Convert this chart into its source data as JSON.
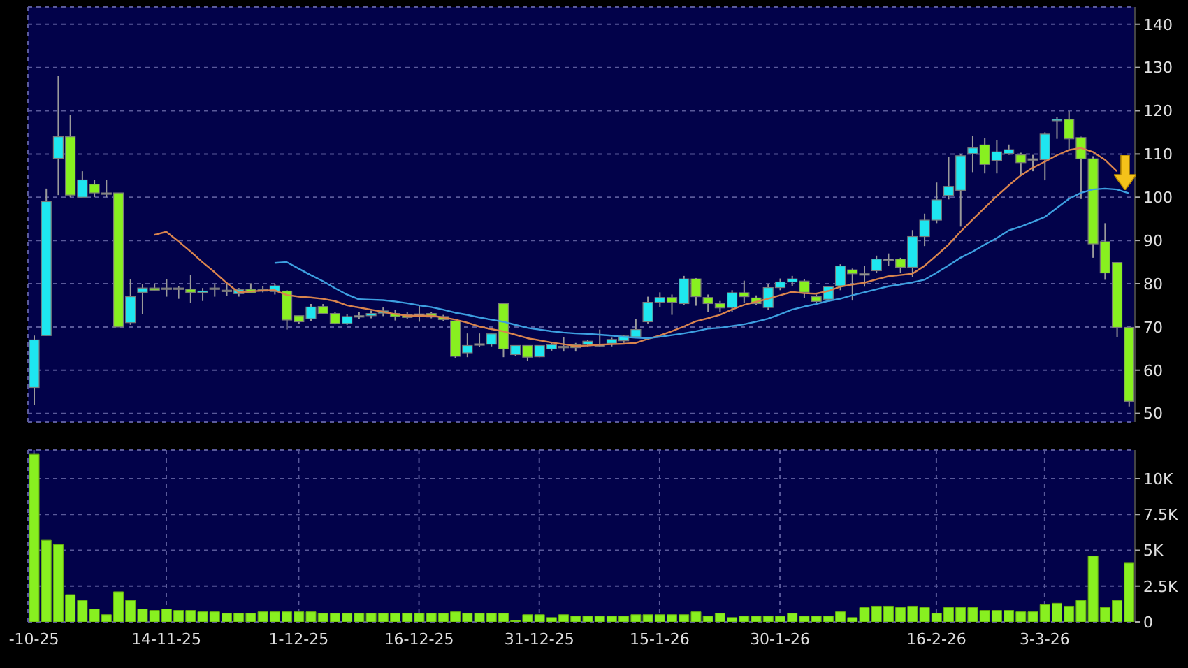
{
  "chart_data": [
    {
      "type": "candlestick",
      "categories": [
        null,
        null,
        null,
        null,
        null,
        null,
        null,
        null,
        null,
        null,
        null,
        null,
        null,
        null,
        null,
        null,
        null,
        null,
        null,
        null,
        null,
        null,
        null,
        null,
        null,
        null,
        null,
        null,
        null,
        null,
        null,
        null,
        null,
        null,
        null,
        null,
        null,
        null,
        null,
        null,
        null,
        null,
        null,
        null,
        null,
        null,
        null,
        null,
        null,
        null,
        null,
        null,
        null,
        null,
        null,
        null,
        null,
        null,
        null,
        null,
        null,
        null,
        null,
        null,
        null,
        null,
        null,
        null,
        null,
        null,
        null,
        null,
        null,
        null,
        null,
        null,
        null,
        null,
        null,
        null,
        null,
        null,
        null,
        null,
        null,
        null,
        null,
        null,
        null,
        null,
        null,
        null
      ],
      "ohlc": [
        [
          56,
          68,
          52,
          67
        ],
        [
          68,
          102,
          68,
          99
        ],
        [
          109,
          128,
          100.5,
          114
        ],
        [
          114,
          119,
          100,
          100.5
        ],
        [
          100,
          106,
          100,
          104
        ],
        [
          103,
          104,
          100,
          101
        ],
        [
          101,
          104,
          100,
          101
        ],
        [
          101,
          101,
          70,
          70
        ],
        [
          71,
          81,
          70.5,
          77
        ],
        [
          78,
          80,
          73,
          79
        ],
        [
          79,
          80,
          78.5,
          78.5
        ],
        [
          79,
          81,
          77,
          79
        ],
        [
          79,
          79.5,
          76.5,
          79
        ],
        [
          78.7,
          82,
          75.6,
          78
        ],
        [
          78,
          79,
          76,
          78.3
        ],
        [
          79,
          80,
          77,
          79
        ],
        [
          78.5,
          80,
          77.2,
          78.5
        ],
        [
          77.7,
          79,
          77,
          78.6
        ],
        [
          78.7,
          80.1,
          77.9,
          77.9
        ],
        [
          78.6,
          79.5,
          78,
          78.3
        ],
        [
          78.2,
          80,
          77.5,
          79.5
        ],
        [
          78.3,
          78.5,
          69.4,
          71.6
        ],
        [
          72.6,
          72.6,
          70.7,
          71.2
        ],
        [
          71.9,
          75.3,
          71.3,
          74.6
        ],
        [
          74.7,
          75.3,
          73,
          73.1
        ],
        [
          73.1,
          73.5,
          70.6,
          70.8
        ],
        [
          70.8,
          73,
          70.5,
          72.4
        ],
        [
          72.6,
          73.4,
          71.9,
          72.6
        ],
        [
          72.6,
          73.8,
          72,
          73.1
        ],
        [
          73.2,
          74.5,
          72.5,
          73.7
        ],
        [
          73.1,
          74,
          71.5,
          72.4
        ],
        [
          72.8,
          73.5,
          71.8,
          72.2
        ],
        [
          73,
          74.9,
          71.2,
          73
        ],
        [
          73.1,
          73.5,
          72,
          72.3
        ],
        [
          72.4,
          72.8,
          71.3,
          71.7
        ],
        [
          71.4,
          71.4,
          62.8,
          63.2
        ],
        [
          64,
          68.5,
          63,
          65.7
        ],
        [
          66.1,
          68.5,
          65.3,
          66.1
        ],
        [
          66,
          68.4,
          65.5,
          68.4
        ],
        [
          75.4,
          75.4,
          63,
          64.9
        ],
        [
          63.6,
          65.7,
          63.2,
          65.7
        ],
        [
          65.7,
          65.7,
          62.1,
          63
        ],
        [
          63.1,
          65.7,
          63,
          65.7
        ],
        [
          64.9,
          66.6,
          64.5,
          65.9
        ],
        [
          65.5,
          67.7,
          64.3,
          65.5
        ],
        [
          65.9,
          66.3,
          64.3,
          65.2
        ],
        [
          66,
          67,
          65.5,
          66.7
        ],
        [
          65.9,
          69.4,
          65.3,
          65.9
        ],
        [
          66.2,
          67.5,
          65.5,
          67.1
        ],
        [
          66.8,
          68.2,
          66.3,
          67.9
        ],
        [
          67.7,
          71.9,
          67.5,
          69.4
        ],
        [
          71.2,
          77,
          70.8,
          75.7
        ],
        [
          75.7,
          78,
          74.5,
          76.8
        ],
        [
          76.8,
          77.5,
          72.8,
          75.7
        ],
        [
          75.4,
          81.8,
          75,
          81.1
        ],
        [
          81.1,
          81.3,
          74.9,
          77
        ],
        [
          76.8,
          77.5,
          73.5,
          75.4
        ],
        [
          75.4,
          76,
          73.5,
          74.4
        ],
        [
          74.5,
          78.5,
          73.5,
          77.9
        ],
        [
          77.9,
          80.7,
          75.5,
          77
        ],
        [
          76.7,
          77.3,
          75,
          75.4
        ],
        [
          74.5,
          80,
          74,
          79.1
        ],
        [
          79.1,
          81.2,
          78.5,
          80.4
        ],
        [
          80.4,
          81.8,
          79.5,
          81.1
        ],
        [
          80.6,
          81,
          76.7,
          78
        ],
        [
          77,
          77.5,
          75.3,
          75.9
        ],
        [
          76.4,
          79.5,
          76,
          79.3
        ],
        [
          79.5,
          84.5,
          78.5,
          84.1
        ],
        [
          83.2,
          83.5,
          76.1,
          82.3
        ],
        [
          82.3,
          84.1,
          79.3,
          82.3
        ],
        [
          83,
          86.5,
          82.5,
          85.7
        ],
        [
          85.7,
          87,
          84.1,
          85.7
        ],
        [
          85.7,
          86,
          82.5,
          83.8
        ],
        [
          83.8,
          92.4,
          81.5,
          90.9
        ],
        [
          90.9,
          96.2,
          88.7,
          94.7
        ],
        [
          94.7,
          103.4,
          94,
          99.4
        ],
        [
          100.4,
          109.3,
          99.5,
          102.5
        ],
        [
          101.6,
          110,
          93.2,
          109.6
        ],
        [
          110.1,
          114.1,
          105.8,
          111.4
        ],
        [
          112.1,
          113.7,
          105.5,
          107.6
        ],
        [
          108.5,
          113.2,
          105.5,
          110.5
        ],
        [
          110.1,
          112.2,
          109.8,
          111
        ],
        [
          109.8,
          110.3,
          105,
          108
        ],
        [
          108.9,
          109.8,
          106,
          108.9
        ],
        [
          108.7,
          115,
          103.9,
          114.6
        ],
        [
          117.8,
          118.5,
          113.5,
          118
        ],
        [
          118,
          119.9,
          111,
          113.5
        ],
        [
          113.8,
          114,
          99.6,
          108.9
        ],
        [
          108.9,
          109.5,
          86,
          89.2
        ],
        [
          89.7,
          94,
          80.9,
          82.5
        ],
        [
          84.9,
          85,
          67.6,
          69.9
        ],
        [
          69.9,
          70,
          51.6,
          52.8
        ]
      ],
      "colors": [
        "#1ee6f0",
        "#1ee6f0",
        "#1ee6f0",
        "#88f020",
        "#1ee6f0",
        "#88f020",
        "#a0a0a0",
        "#88f020",
        "#1ee6f0",
        "#1ee6f0",
        "#88f020",
        "#a0a0a0",
        "#a0a0a0",
        "#88f020",
        "#1ee6f0",
        "#a0a0a0",
        "#a0a0a0",
        "#1ee6f0",
        "#88f020",
        "#88f020",
        "#1ee6f0",
        "#88f020",
        "#88f020",
        "#1ee6f0",
        "#88f020",
        "#88f020",
        "#1ee6f0",
        "#a0a0a0",
        "#1ee6f0",
        "#1ee6f0",
        "#88f020",
        "#88f020",
        "#a0a0a0",
        "#88f020",
        "#88f020",
        "#88f020",
        "#1ee6f0",
        "#a0a0a0",
        "#1ee6f0",
        "#88f020",
        "#1ee6f0",
        "#88f020",
        "#1ee6f0",
        "#1ee6f0",
        "#a0a0a0",
        "#88f020",
        "#1ee6f0",
        "#a0a0a0",
        "#1ee6f0",
        "#1ee6f0",
        "#1ee6f0",
        "#1ee6f0",
        "#1ee6f0",
        "#88f020",
        "#1ee6f0",
        "#88f020",
        "#88f020",
        "#88f020",
        "#1ee6f0",
        "#88f020",
        "#88f020",
        "#1ee6f0",
        "#1ee6f0",
        "#1ee6f0",
        "#88f020",
        "#88f020",
        "#1ee6f0",
        "#1ee6f0",
        "#88f020",
        "#a0a0a0",
        "#1ee6f0",
        "#a0a0a0",
        "#88f020",
        "#1ee6f0",
        "#1ee6f0",
        "#1ee6f0",
        "#1ee6f0",
        "#1ee6f0",
        "#1ee6f0",
        "#88f020",
        "#1ee6f0",
        "#1ee6f0",
        "#88f020",
        "#a0a0a0",
        "#1ee6f0",
        "#1ee6f0",
        "#88f020",
        "#88f020",
        "#88f020",
        "#88f020",
        "#88f020",
        "#88f020"
      ],
      "series": [
        {
          "type": "line",
          "color": "#d9844e",
          "values": [
            null,
            null,
            null,
            null,
            null,
            null,
            null,
            null,
            null,
            null,
            91.3,
            92.0,
            89.8,
            87.5,
            85,
            82.7,
            80.2,
            78,
            78.2,
            78.4,
            78.5,
            77.4,
            77,
            76.8,
            76.5,
            76,
            75,
            74.5,
            74,
            73.5,
            73,
            72.6,
            72.6,
            72.6,
            72.2,
            71.7,
            71,
            70.1,
            69.5,
            69,
            68.2,
            67.4,
            66.9,
            66.4,
            66,
            65.6,
            65.7,
            65.9,
            66,
            66.1,
            66.3,
            67.2,
            68,
            69,
            70.1,
            71.3,
            72,
            72.8,
            74,
            75.1,
            75.8,
            76.5,
            77.3,
            78.1,
            77.8,
            77.7,
            78.3,
            79.3,
            79.8,
            80.2,
            81,
            81.7,
            82,
            82.3,
            84.1,
            86.5,
            89,
            92,
            94.8,
            97.5,
            100.2,
            102.7,
            105,
            106.8,
            108.2,
            109.7,
            110.9,
            111.4,
            110.5,
            108.7,
            106,
            null
          ]
        },
        {
          "type": "line",
          "color": "#3d9fe0",
          "values": [
            null,
            null,
            null,
            null,
            null,
            null,
            null,
            null,
            null,
            null,
            null,
            null,
            null,
            null,
            null,
            null,
            null,
            null,
            null,
            null,
            84.8,
            85.0,
            83.5,
            82,
            80.6,
            79,
            77.5,
            76.4,
            76.3,
            76.2,
            75.9,
            75.5,
            75,
            74.6,
            74,
            73.3,
            72.8,
            72.2,
            71.7,
            71.2,
            70.5,
            69.8,
            69.4,
            69,
            68.7,
            68.5,
            68.4,
            68.2,
            68,
            67.7,
            67.5,
            67.4,
            67.7,
            68.1,
            68.5,
            69,
            69.6,
            69.8,
            70.2,
            70.6,
            71.2,
            71.9,
            72.9,
            74,
            74.7,
            75.3,
            76,
            76.5,
            77.3,
            78,
            78.7,
            79.4,
            79.8,
            80.3,
            80.9,
            82.5,
            84.2,
            86,
            87.4,
            89,
            90.5,
            92.3,
            93.2,
            94.3,
            95.4,
            97.5,
            99.6,
            101,
            101.8,
            102,
            101.8,
            100.9
          ]
        }
      ],
      "ylim": [
        48,
        144
      ],
      "yticks": [
        50,
        60,
        70,
        80,
        90,
        100,
        110,
        120,
        130,
        140
      ],
      "grid": true,
      "tick_labels": "y",
      "marker": "none"
    },
    {
      "type": "bar",
      "categories": [
        "-10-25",
        null,
        null,
        null,
        null,
        null,
        null,
        null,
        null,
        null,
        null,
        "14-11-25",
        null,
        null,
        null,
        null,
        null,
        null,
        null,
        null,
        null,
        null,
        "1-12-25",
        null,
        null,
        null,
        null,
        null,
        null,
        null,
        null,
        null,
        "16-12-25",
        null,
        null,
        null,
        null,
        null,
        null,
        null,
        null,
        null,
        "31-12-25",
        null,
        null,
        null,
        null,
        null,
        null,
        null,
        null,
        null,
        "15-1-26",
        null,
        null,
        null,
        null,
        null,
        null,
        null,
        null,
        null,
        "30-1-26",
        null,
        null,
        null,
        null,
        null,
        null,
        null,
        null,
        null,
        null,
        null,
        null,
        "16-2-26",
        null,
        null,
        null,
        null,
        null,
        null,
        null,
        null,
        "3-3-26",
        null,
        null,
        null,
        null,
        null,
        null,
        null
      ],
      "values": [
        11700,
        5700,
        5400,
        1900,
        1500,
        900,
        500,
        2100,
        1500,
        900,
        800,
        900,
        800,
        800,
        700,
        700,
        600,
        600,
        600,
        700,
        700,
        700,
        700,
        700,
        600,
        600,
        600,
        600,
        600,
        600,
        600,
        600,
        600,
        600,
        600,
        700,
        600,
        600,
        600,
        600,
        100,
        500,
        500,
        300,
        500,
        400,
        400,
        400,
        400,
        400,
        500,
        500,
        500,
        500,
        500,
        700,
        400,
        600,
        300,
        400,
        400,
        400,
        400,
        600,
        400,
        400,
        400,
        700,
        300,
        1000,
        1100,
        1100,
        1000,
        1100,
        1000,
        600,
        1000,
        1000,
        1000,
        800,
        800,
        800,
        700,
        700,
        1200,
        1300,
        1100,
        1500,
        4600,
        1000,
        1500,
        4100
      ],
      "color": "#88f020",
      "ylim": [
        0,
        12000
      ],
      "yticks": [
        0,
        {
          "value": 2500,
          "label": "2.5K"
        },
        {
          "value": 5000,
          "label": "5K"
        },
        {
          "value": 7500,
          "label": "7.5K"
        },
        {
          "value": 10000,
          "label": "10K"
        }
      ],
      "grid": true
    }
  ]
}
